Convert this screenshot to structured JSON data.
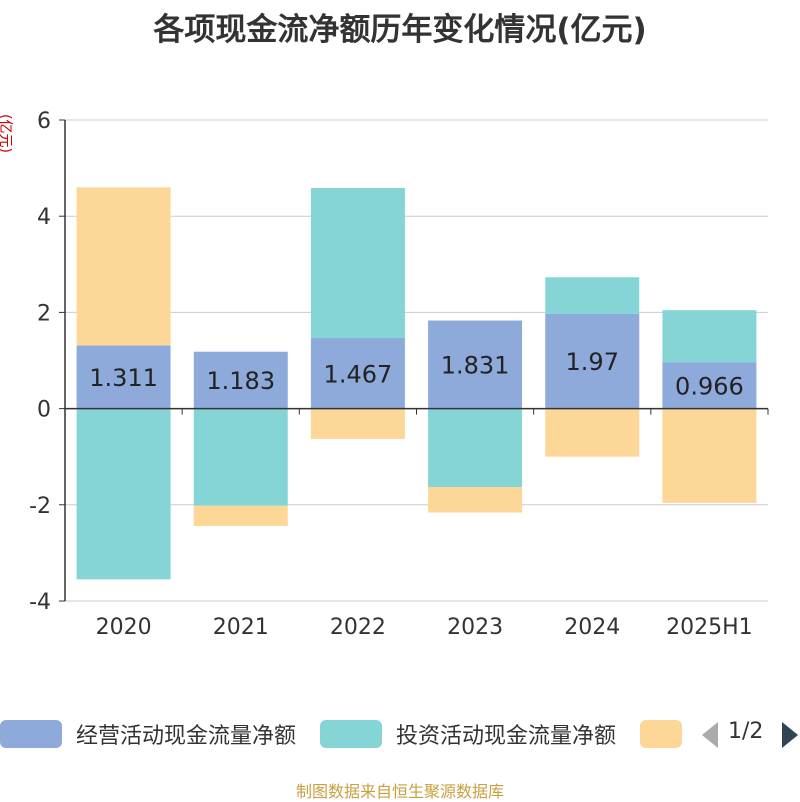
{
  "title": "各项现金流净额历年变化情况(亿元)",
  "unit_label": "(亿元)",
  "source": "制图数据来自恒生聚源数据库",
  "pager": {
    "text": "1/2"
  },
  "chart_data": {
    "type": "bar",
    "stacked": true,
    "categories": [
      "2020",
      "2021",
      "2022",
      "2023",
      "2024",
      "2025H1"
    ],
    "ylim": [
      -4,
      6
    ],
    "yticks": [
      -4,
      -2,
      0,
      2,
      4,
      6
    ],
    "grid": true,
    "legend_position": "bottom",
    "series": [
      {
        "name": "经营活动现金流量净额",
        "color": "#8eaadb",
        "values": [
          1.311,
          1.183,
          1.467,
          1.831,
          1.97,
          0.966
        ],
        "labels": true
      },
      {
        "name": "投资活动现金流量净额",
        "color": "#85d4d6",
        "values": [
          -3.55,
          -2.02,
          3.12,
          -1.63,
          0.76,
          1.08
        ]
      },
      {
        "name": "",
        "color": "#fdd797",
        "values": [
          3.29,
          -0.42,
          -0.63,
          -0.53,
          -1.0,
          -1.96
        ]
      }
    ]
  }
}
